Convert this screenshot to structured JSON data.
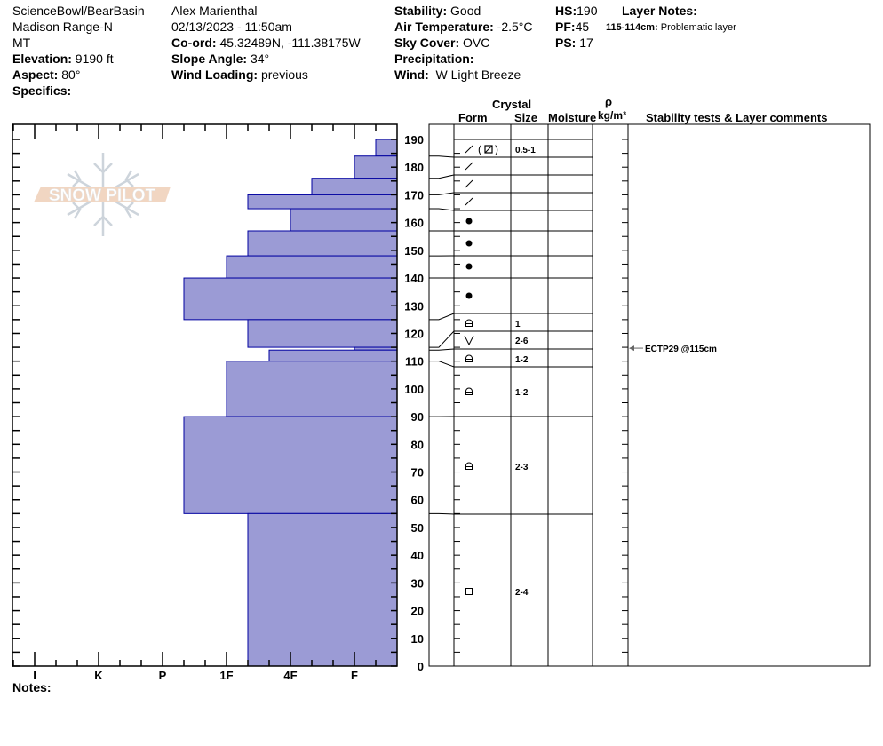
{
  "header": {
    "location": "ScienceBowl/BearBasin",
    "range": "Madison Range-N",
    "state": "MT",
    "elevation_label": "Elevation:",
    "elevation": "9190 ft",
    "aspect_label": "Aspect:",
    "aspect": "80°",
    "specifics_label": "Specifics:",
    "observer": "Alex Marienthal",
    "datetime": "02/13/2023 - 11:50am",
    "coord_label": "Co-ord:",
    "coord": "45.32489N, -111.38175W",
    "slope_label": "Slope Angle:",
    "slope": "34°",
    "wind_loading_label": "Wind Loading:",
    "wind_loading": "previous",
    "stability_label": "Stability:",
    "stability": "Good",
    "air_temp_label": "Air Temperature:",
    "air_temp": "-2.5°C",
    "sky_label": "Sky Cover:",
    "sky": "OVC",
    "precip_label": "Precipitation:",
    "wind_label": "Wind:",
    "wind": "W Light Breeze",
    "hs_label": "HS:",
    "hs": "190",
    "pf_label": "PF:",
    "pf": "45",
    "ps_label": "PS:",
    "ps": "17",
    "layer_notes_label": "Layer Notes:",
    "layer_note_range": "115-114cm:",
    "layer_note_text": "Problematic layer"
  },
  "columns": {
    "crystal": "Crystal",
    "form": "Form",
    "size": "Size",
    "moisture": "Moisture",
    "rho": "ρ",
    "density_unit": "kg/m³",
    "comments": "Stability tests & Layer comments"
  },
  "notes_label": "Notes:",
  "logo_text": "SNOW PILOT",
  "colors": {
    "bar_fill": "#9b9bd5",
    "bar_stroke": "#0000a0",
    "logo_orange": "#f0d2bc",
    "logo_snowflake": "#c8d0d8"
  },
  "chart_data": {
    "type": "bar",
    "orientation": "horizontal",
    "hardness_axis": [
      "I",
      "K",
      "P",
      "1F",
      "4F",
      "F"
    ],
    "height_axis": {
      "range": [
        0,
        190
      ],
      "ticks": [
        0,
        10,
        20,
        30,
        40,
        50,
        60,
        70,
        80,
        90,
        100,
        110,
        120,
        130,
        140,
        150,
        160,
        170,
        180,
        190
      ],
      "unit": "cm"
    },
    "layers": [
      {
        "top": 190,
        "bottom": 184,
        "hardness": "F-",
        "form": "decomposing",
        "form2": "mixed-forms",
        "size": "0.5-1"
      },
      {
        "top": 184,
        "bottom": 176,
        "hardness": "F",
        "form": "decomposing",
        "size": ""
      },
      {
        "top": 176,
        "bottom": 170,
        "hardness": "4F-",
        "form": "decomposing",
        "size": ""
      },
      {
        "top": 170,
        "bottom": 165,
        "hardness": "1F-",
        "form": "decomposing",
        "size": ""
      },
      {
        "top": 165,
        "bottom": 157,
        "hardness": "4F",
        "form": "rounded",
        "size": ""
      },
      {
        "top": 157,
        "bottom": 148,
        "hardness": "1F-",
        "form": "rounded",
        "size": ""
      },
      {
        "top": 148,
        "bottom": 140,
        "hardness": "1F",
        "form": "rounded",
        "size": ""
      },
      {
        "top": 140,
        "bottom": 125,
        "hardness": "P-",
        "form": "rounded",
        "size": ""
      },
      {
        "top": 125,
        "bottom": 115,
        "hardness": "1F-",
        "form": "faceted-rounded",
        "size": "1"
      },
      {
        "top": 115,
        "bottom": 114,
        "hardness": "F",
        "form": "surface-hoar",
        "size": "2-6"
      },
      {
        "top": 114,
        "bottom": 110,
        "hardness": "4F+",
        "form": "faceted-rounded",
        "size": "1-2"
      },
      {
        "top": 110,
        "bottom": 90,
        "hardness": "1F",
        "form": "faceted-rounded",
        "size": "1-2"
      },
      {
        "top": 90,
        "bottom": 55,
        "hardness": "P-",
        "form": "faceted-rounded",
        "size": "2-3"
      },
      {
        "top": 55,
        "bottom": 0,
        "hardness": "1F-",
        "form": "faceted",
        "size": "2-4"
      }
    ],
    "stability_tests": [
      {
        "label": "ECTP29 @115cm",
        "depth": 115
      }
    ]
  }
}
